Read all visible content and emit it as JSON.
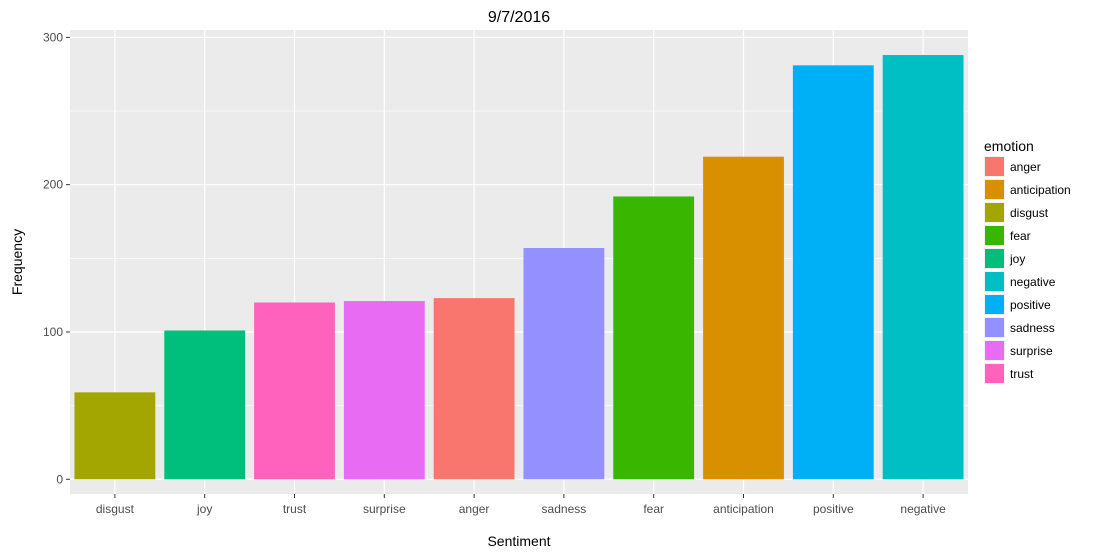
{
  "chart_data": {
    "type": "bar",
    "title": "9/7/2016",
    "xlabel": "Sentiment",
    "ylabel": "Frequency",
    "ylim": [
      -10,
      305
    ],
    "yticks": [
      0,
      100,
      200,
      300
    ],
    "grid": true,
    "legend_title": "emotion",
    "legend_position": "right",
    "categories": [
      "disgust",
      "joy",
      "trust",
      "surprise",
      "anger",
      "sadness",
      "fear",
      "anticipation",
      "positive",
      "negative"
    ],
    "values": [
      59,
      101,
      120,
      121,
      123,
      157,
      192,
      219,
      281,
      288
    ],
    "emotions": [
      "anger",
      "anticipation",
      "disgust",
      "fear",
      "joy",
      "negative",
      "positive",
      "sadness",
      "surprise",
      "trust"
    ],
    "colors": {
      "anger": "#F8766D",
      "anticipation": "#D89000",
      "disgust": "#A3A500",
      "fear": "#39B600",
      "joy": "#00BF7D",
      "negative": "#00BFC4",
      "positive": "#00B0F6",
      "sadness": "#9590FF",
      "surprise": "#E76BF3",
      "trust": "#FF62BC"
    }
  }
}
